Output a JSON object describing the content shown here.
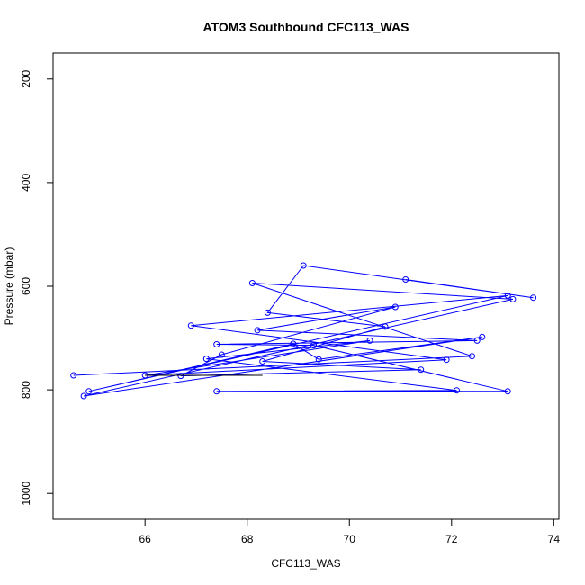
{
  "chart_data": {
    "type": "scatter",
    "title": "ATOM3 Southbound CFC113_WAS",
    "xlabel": "CFC113_WAS",
    "ylabel": "Pressure (mbar)",
    "xlim": [
      64.2,
      74.1
    ],
    "ylim": [
      1050,
      150
    ],
    "y_reversed": true,
    "x_ticks": [
      66,
      68,
      70,
      72,
      74
    ],
    "y_ticks": [
      200,
      400,
      600,
      800,
      1000
    ],
    "grid": false,
    "legend": "none",
    "colors": {
      "series": "#0000ff",
      "highlight": "#000000"
    },
    "series": [
      {
        "style": "line+points",
        "points": [
          [
            64.6,
            772
          ],
          [
            72.4,
            735
          ],
          [
            68.1,
            594
          ],
          [
            73.2,
            625
          ],
          [
            64.8,
            812
          ],
          [
            72.6,
            698
          ],
          [
            69.4,
            741
          ],
          [
            68.9,
            711
          ],
          [
            64.9,
            803
          ],
          [
            73.1,
            618
          ],
          [
            66.9,
            676
          ],
          [
            71.9,
            742
          ],
          [
            66.0,
            772
          ],
          [
            70.4,
            705
          ],
          [
            67.2,
            740
          ],
          [
            72.1,
            801
          ],
          [
            67.4,
            803
          ],
          [
            73.1,
            803
          ],
          [
            69.3,
            714
          ],
          [
            67.4,
            712
          ],
          [
            72.5,
            705
          ],
          [
            68.2,
            685
          ],
          [
            70.9,
            640
          ],
          [
            67.5,
            732
          ],
          [
            66.7,
            773
          ],
          [
            71.4,
            761
          ],
          [
            68.3,
            745
          ],
          [
            70.7,
            678
          ],
          [
            68.4,
            651
          ],
          [
            69.1,
            560
          ],
          [
            73.6,
            622
          ],
          [
            71.1,
            587
          ]
        ]
      },
      {
        "style": "line",
        "color_key": "highlight",
        "points": [
          [
            66.0,
            772
          ],
          [
            68.3,
            772
          ]
        ]
      }
    ]
  }
}
